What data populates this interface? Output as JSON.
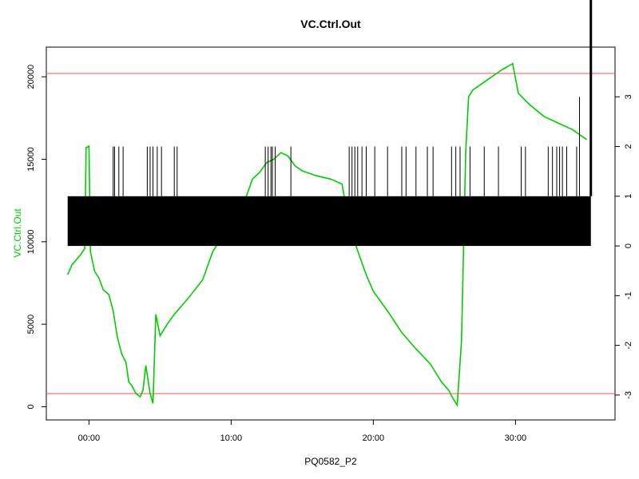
{
  "chart_data": {
    "type": "line",
    "title": "VC.Ctrl.Out",
    "xlabel": "PQ0582_P2",
    "ylabel": "VC.Ctrl.Out",
    "x_units": "minutes",
    "xlim": [
      -3,
      37
    ],
    "ylim": [
      -800,
      21800
    ],
    "y2lim": [
      -3.5,
      4.0
    ],
    "xticks": [
      {
        "v": 0,
        "label": "00:00"
      },
      {
        "v": 10,
        "label": "10:00"
      },
      {
        "v": 20,
        "label": "20:00"
      },
      {
        "v": 30,
        "label": "30:00"
      }
    ],
    "yticks": [
      {
        "v": 0,
        "label": "0"
      },
      {
        "v": 5000,
        "label": "5000"
      },
      {
        "v": 10000,
        "label": "10000"
      },
      {
        "v": 15000,
        "label": "15000"
      },
      {
        "v": 20000,
        "label": "20000"
      }
    ],
    "y2ticks": [
      {
        "v": -3,
        "label": "-3"
      },
      {
        "v": -2,
        "label": "-2"
      },
      {
        "v": -1,
        "label": "-1"
      },
      {
        "v": 0,
        "label": "0"
      },
      {
        "v": 1,
        "label": "1"
      },
      {
        "v": 2,
        "label": "2"
      },
      {
        "v": 3,
        "label": "3"
      }
    ],
    "hlines": [
      {
        "y": 20200,
        "color": "#ff4d4d"
      },
      {
        "y": 800,
        "color": "#ff4d4d"
      }
    ],
    "colors": {
      "series": "#00cc00",
      "marker": "#000000",
      "axis": "#000000"
    },
    "series": [
      {
        "name": "VC.Ctrl.Out",
        "axis": "left",
        "color": "#00cc00",
        "x": [
          -1.5,
          -1.2,
          -1.0,
          -0.6,
          -0.3,
          -0.2,
          0.0,
          0.1,
          0.2,
          0.4,
          0.7,
          1.0,
          1.4,
          1.7,
          2.0,
          2.3,
          2.6,
          2.8,
          3.0,
          3.3,
          3.6,
          3.8,
          4.0,
          4.3,
          4.5,
          4.7,
          5.0,
          5.5,
          6.0,
          7.0,
          8.0,
          8.7,
          9.3,
          10.0,
          10.6,
          11.0,
          11.5,
          12.0,
          12.5,
          13.0,
          13.5,
          14.0,
          14.5,
          15.0,
          16.0,
          17.0,
          17.8,
          18.3,
          19.0,
          19.5,
          20.0,
          21.0,
          22.0,
          23.0,
          24.0,
          24.8,
          25.3,
          25.6,
          25.9,
          26.2,
          26.5,
          26.7,
          27.0,
          28.0,
          29.0,
          29.8,
          30.2,
          31.0,
          32.0,
          33.0,
          34.0,
          35.0
        ],
        "y": [
          8000,
          8600,
          8800,
          9200,
          9600,
          15700,
          15800,
          9400,
          9000,
          8200,
          7800,
          7100,
          6800,
          5800,
          4200,
          3200,
          2700,
          1500,
          1300,
          800,
          600,
          1000,
          2500,
          800,
          200,
          5600,
          4300,
          5000,
          5600,
          6600,
          7700,
          9400,
          10200,
          11000,
          12000,
          12600,
          13800,
          14200,
          14800,
          15000,
          15400,
          15200,
          14600,
          14300,
          14000,
          13800,
          13500,
          11000,
          9200,
          8000,
          7000,
          5800,
          4500,
          3500,
          2600,
          1500,
          1000,
          500,
          100,
          4000,
          15500,
          18800,
          19200,
          19800,
          20400,
          20800,
          19000,
          18300,
          17600,
          17200,
          16800,
          16200
        ]
      }
    ],
    "marker_band": {
      "axis": "right",
      "ymin": 0.0,
      "ymax": 1.0,
      "xmin": -1.5,
      "xmax": 35.3,
      "color": "#000000"
    },
    "marker_spikes": {
      "axis": "right",
      "top": 2.0,
      "color": "#000000",
      "x": [
        1.7,
        1.8,
        2.1,
        2.4,
        4.1,
        4.3,
        4.5,
        4.8,
        5.1,
        6.0,
        6.2,
        12.4,
        12.6,
        12.8,
        12.9,
        13.1,
        14.2,
        18.3,
        18.5,
        18.7,
        18.9,
        19.2,
        19.5,
        20.1,
        21.0,
        22.0,
        22.3,
        23.0,
        23.8,
        24.2,
        25.5,
        25.8,
        26.1,
        26.8,
        27.8,
        28.8,
        30.4,
        30.7,
        32.3,
        32.6,
        32.9,
        33.1,
        33.3,
        33.6,
        34.3
      ]
    },
    "marker_peak": {
      "axis": "right",
      "x": 34.5,
      "y": 3.0
    },
    "marker_tall": {
      "axis": "right",
      "x": 35.3,
      "y": 4.0
    }
  }
}
